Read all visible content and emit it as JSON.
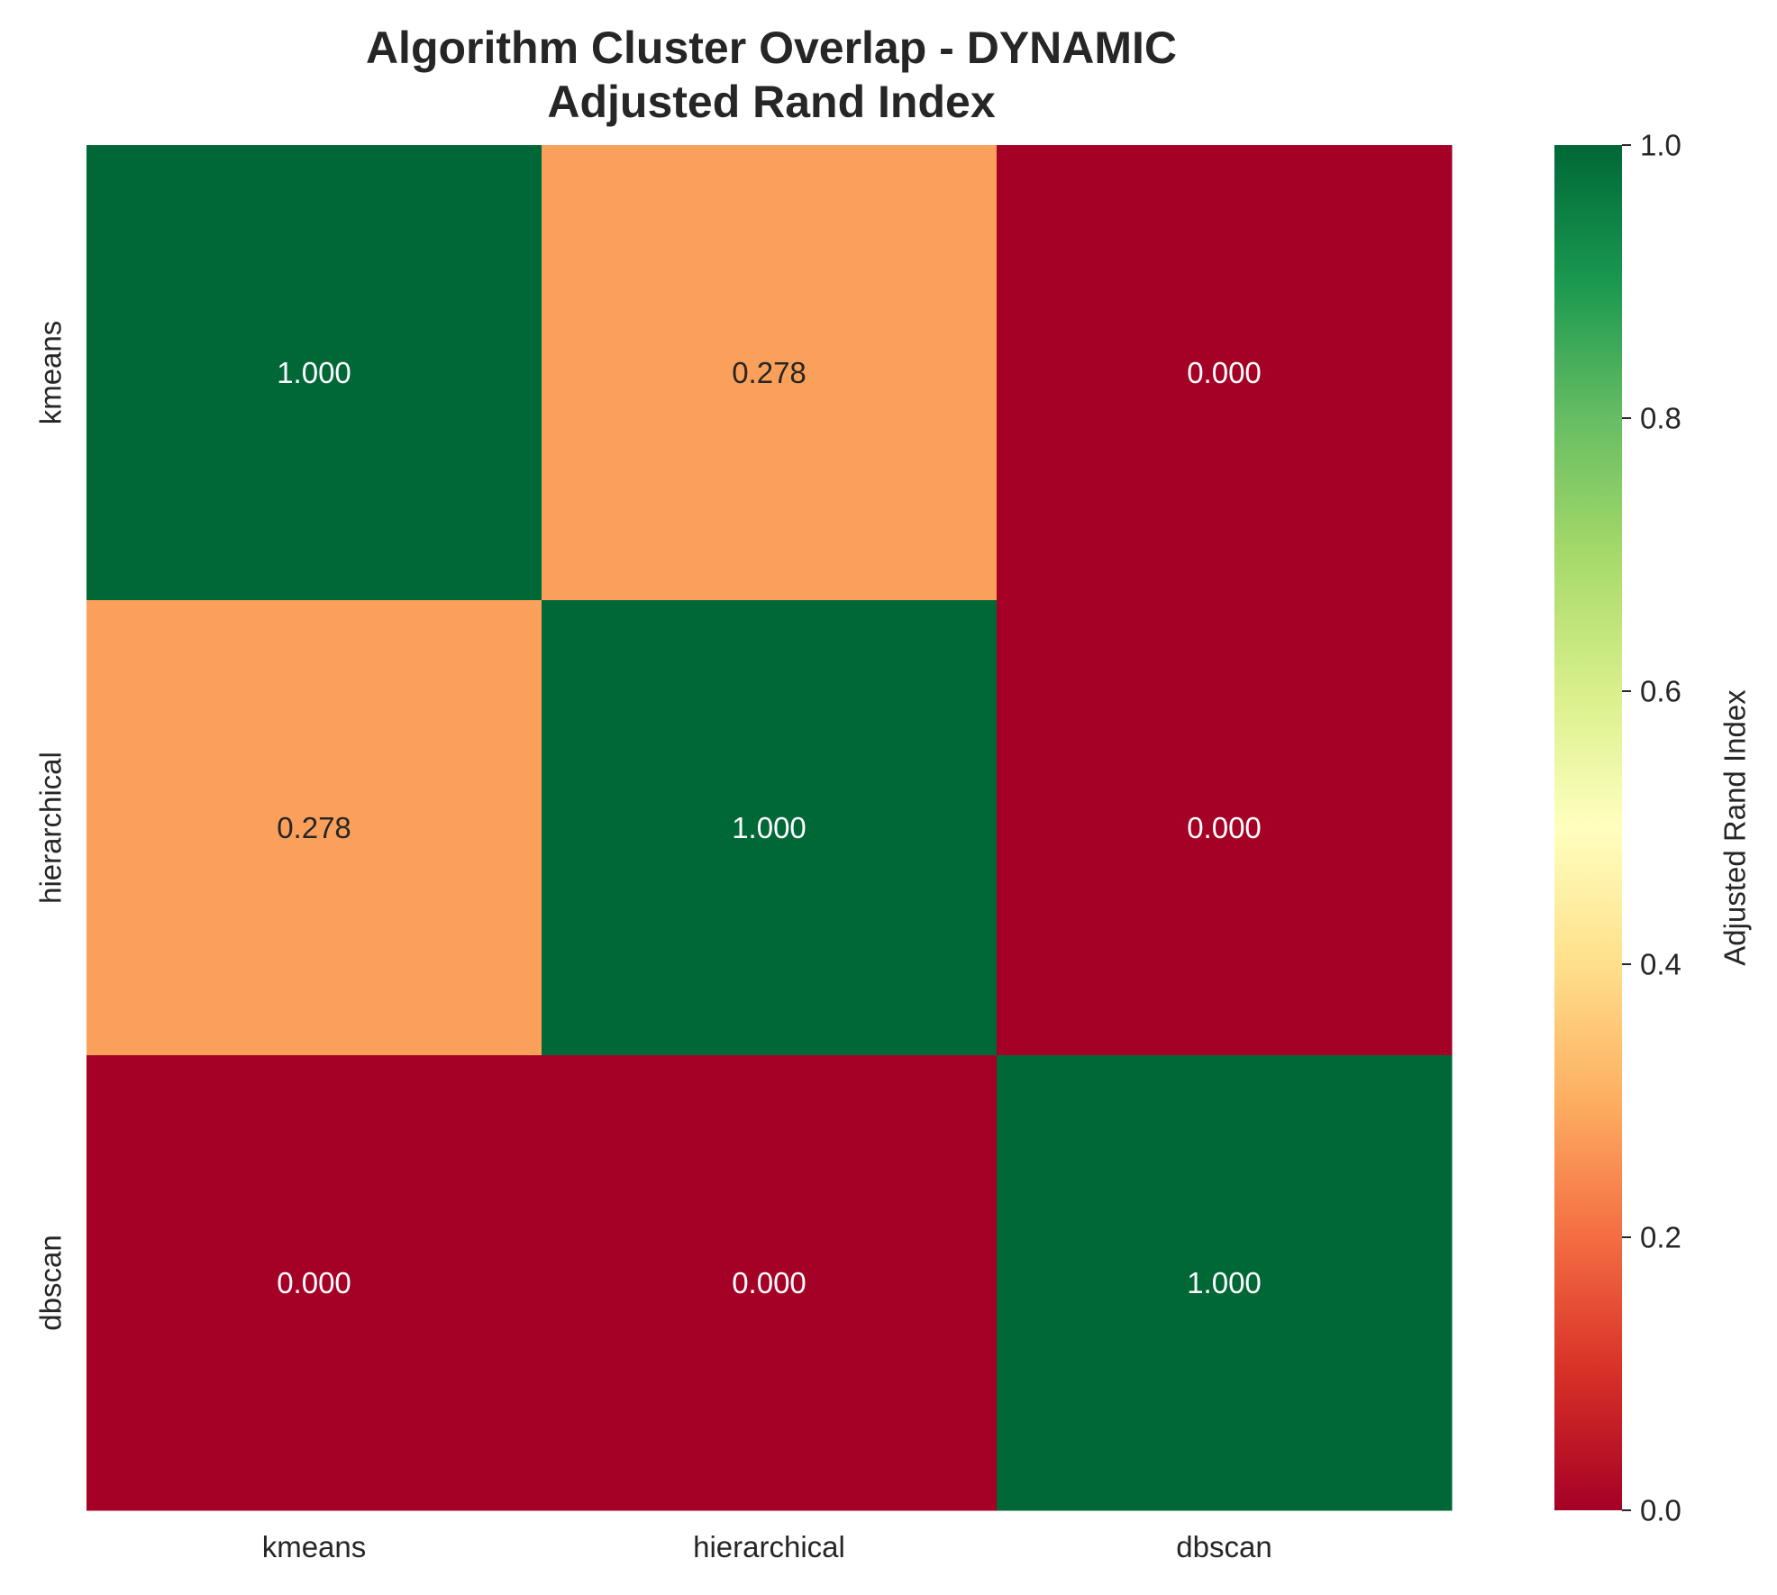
{
  "chart_data": {
    "type": "heatmap",
    "title": "Algorithm Cluster Overlap - DYNAMIC\nAdjusted Rand Index",
    "x_categories": [
      "kmeans",
      "hierarchical",
      "dbscan"
    ],
    "y_categories": [
      "kmeans",
      "hierarchical",
      "dbscan"
    ],
    "values": [
      [
        1.0,
        0.278,
        0.0
      ],
      [
        0.278,
        1.0,
        0.0
      ],
      [
        0.0,
        0.0,
        1.0
      ]
    ],
    "value_labels": [
      [
        "1.000",
        "0.278",
        "0.000"
      ],
      [
        "0.278",
        "1.000",
        "0.000"
      ],
      [
        "0.000",
        "0.000",
        "1.000"
      ]
    ],
    "colormap": "RdYlGn",
    "vmin": 0.0,
    "vmax": 1.0,
    "colorbar": {
      "label": "Adjusted Rand Index",
      "ticks": [
        0.0,
        0.2,
        0.4,
        0.6,
        0.8,
        1.0
      ],
      "tick_labels": [
        "0.0",
        "0.2",
        "0.4",
        "0.6",
        "0.8",
        "1.0"
      ]
    },
    "colorbar_stops": [
      "#a50026",
      "#d73027",
      "#f46d43",
      "#fdae61",
      "#fee08b",
      "#ffffbf",
      "#d9ef8b",
      "#a6d96a",
      "#66bd63",
      "#1a9850",
      "#006837"
    ],
    "grid": false,
    "legend": "colorbar-right"
  }
}
